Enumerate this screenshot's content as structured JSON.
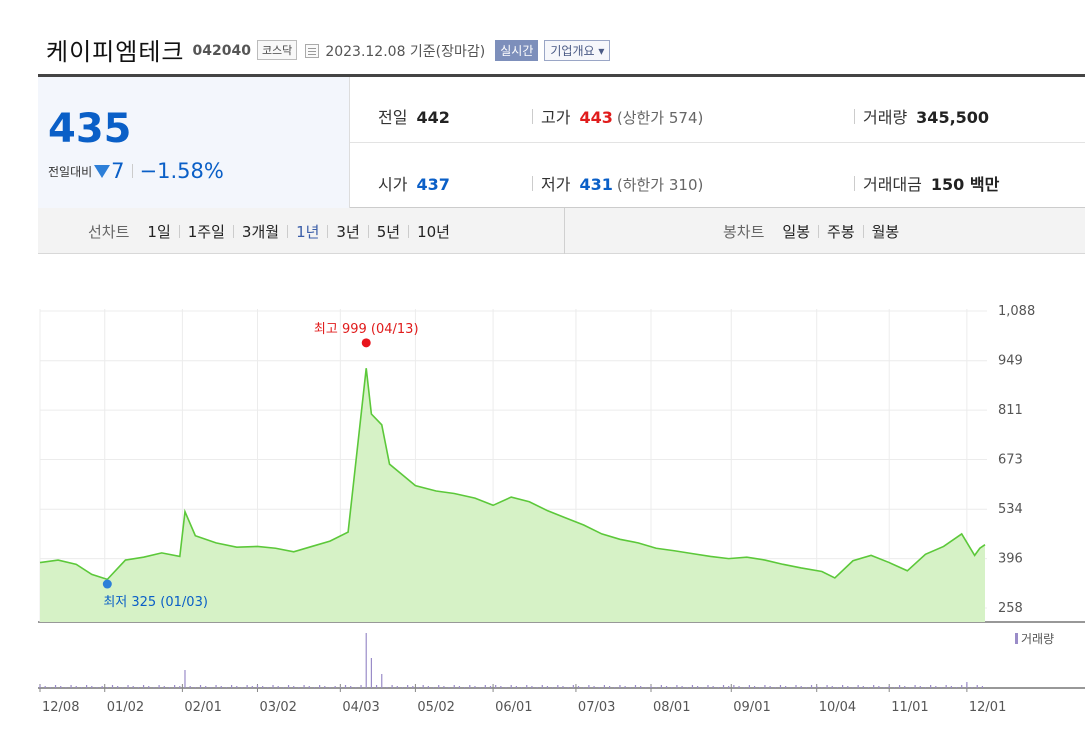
{
  "header": {
    "name": "케이피엠테크",
    "code": "042040",
    "market": "코스닥",
    "date": "2023.12.08 기준(장마감)",
    "realtime_btn": "실시간",
    "company_btn": "기업개요 ▾"
  },
  "summary": {
    "price": "435",
    "change_label": "전일대비",
    "change_amount": "7",
    "change_percent": "−1.58%",
    "prev_close": {
      "label": "전일",
      "value": "442"
    },
    "high": {
      "label": "고가",
      "value": "443",
      "sub": "(상한가 574)"
    },
    "volume": {
      "label": "거래량",
      "value": "345,500"
    },
    "open": {
      "label": "시가",
      "value": "437"
    },
    "low": {
      "label": "저가",
      "value": "431",
      "sub": "(하한가 310)"
    },
    "amount": {
      "label": "거래대금",
      "value": "150 백만"
    }
  },
  "range_bar": {
    "line_label": "선차트",
    "line_items": [
      "1일",
      "1주일",
      "3개월",
      "1년",
      "3년",
      "5년",
      "10년"
    ],
    "active": "1년",
    "candle_label": "봉차트",
    "candle_items": [
      "일봉",
      "주봉",
      "월봉"
    ]
  },
  "colors": {
    "up": "#e01c1c",
    "down": "#0a5fc7",
    "line": "#5cc83a",
    "fill": "#d6f2c6",
    "volume": "#9a8cc8"
  },
  "chart_data": {
    "type": "area",
    "y_ticks": [
      "1,088",
      "949",
      "811",
      "673",
      "534",
      "396",
      "258"
    ],
    "ylim": [
      258,
      1088
    ],
    "x_ticks": [
      "12/08",
      "01/02",
      "02/01",
      "03/02",
      "04/03",
      "05/02",
      "06/01",
      "07/03",
      "08/01",
      "09/01",
      "10/04",
      "11/01",
      "12/01"
    ],
    "series": [
      {
        "values": [
          {
            "x": "12/08",
            "y": 385
          },
          {
            "x": "12/15",
            "y": 392
          },
          {
            "x": "12/22",
            "y": 380
          },
          {
            "x": "12/28",
            "y": 352
          },
          {
            "x": "01/03",
            "y": 338
          },
          {
            "x": "01/10",
            "y": 392
          },
          {
            "x": "01/17",
            "y": 400
          },
          {
            "x": "01/24",
            "y": 412
          },
          {
            "x": "01/31",
            "y": 402
          },
          {
            "x": "02/02",
            "y": 527
          },
          {
            "x": "02/06",
            "y": 460
          },
          {
            "x": "02/14",
            "y": 440
          },
          {
            "x": "02/22",
            "y": 428
          },
          {
            "x": "03/02",
            "y": 430
          },
          {
            "x": "03/09",
            "y": 425
          },
          {
            "x": "03/16",
            "y": 415
          },
          {
            "x": "03/23",
            "y": 430
          },
          {
            "x": "03/30",
            "y": 445
          },
          {
            "x": "04/06",
            "y": 470
          },
          {
            "x": "04/13",
            "y": 928
          },
          {
            "x": "04/15",
            "y": 800
          },
          {
            "x": "04/19",
            "y": 770
          },
          {
            "x": "04/22",
            "y": 660
          },
          {
            "x": "04/27",
            "y": 630
          },
          {
            "x": "05/02",
            "y": 600
          },
          {
            "x": "05/10",
            "y": 585
          },
          {
            "x": "05/17",
            "y": 578
          },
          {
            "x": "05/25",
            "y": 565
          },
          {
            "x": "06/01",
            "y": 545
          },
          {
            "x": "06/08",
            "y": 568
          },
          {
            "x": "06/15",
            "y": 555
          },
          {
            "x": "06/22",
            "y": 530
          },
          {
            "x": "06/29",
            "y": 510
          },
          {
            "x": "07/06",
            "y": 490
          },
          {
            "x": "07/13",
            "y": 465
          },
          {
            "x": "07/20",
            "y": 450
          },
          {
            "x": "07/27",
            "y": 440
          },
          {
            "x": "08/03",
            "y": 425
          },
          {
            "x": "08/10",
            "y": 418
          },
          {
            "x": "08/17",
            "y": 410
          },
          {
            "x": "08/24",
            "y": 402
          },
          {
            "x": "08/31",
            "y": 396
          },
          {
            "x": "09/07",
            "y": 400
          },
          {
            "x": "09/14",
            "y": 392
          },
          {
            "x": "09/21",
            "y": 380
          },
          {
            "x": "09/28",
            "y": 370
          },
          {
            "x": "10/06",
            "y": 360
          },
          {
            "x": "10/11",
            "y": 342
          },
          {
            "x": "10/18",
            "y": 390
          },
          {
            "x": "10/25",
            "y": 405
          },
          {
            "x": "11/01",
            "y": 385
          },
          {
            "x": "11/08",
            "y": 362
          },
          {
            "x": "11/15",
            "y": 408
          },
          {
            "x": "11/22",
            "y": 430
          },
          {
            "x": "11/29",
            "y": 465
          },
          {
            "x": "12/04",
            "y": 405
          },
          {
            "x": "12/06",
            "y": 425
          },
          {
            "x": "12/08",
            "y": 435
          }
        ]
      }
    ],
    "annotations": {
      "high": {
        "label": "최고 999 (04/13)",
        "x": "04/13",
        "y": 999
      },
      "low": {
        "label": "최저 325 (01/03)",
        "x": "01/03",
        "y": 325
      }
    },
    "volume_label": "거래량"
  }
}
